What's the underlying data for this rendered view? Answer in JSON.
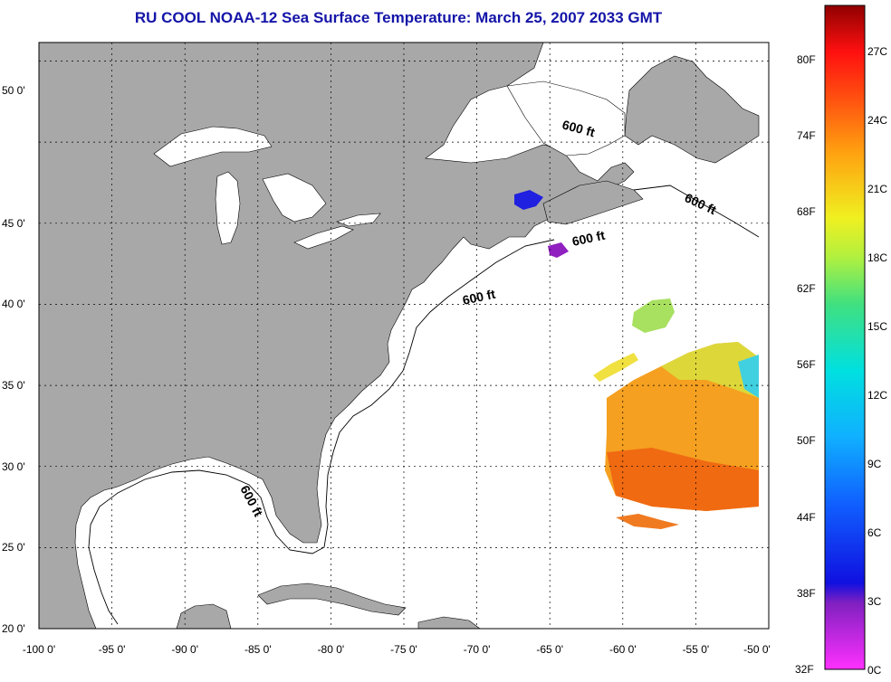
{
  "title": "RU COOL  NOAA-12  Sea Surface Temperature:  March 25, 2007 2033 GMT",
  "colors": {
    "land": "#a8a8a8",
    "water": "#ffffff",
    "title": "#1414a8"
  },
  "map": {
    "lon_range": [
      -100,
      -50
    ],
    "lat_range": [
      20,
      52.5
    ],
    "x_ticks": [
      "-100 0'",
      "-95 0'",
      "-90 0'",
      "-85 0'",
      "-80 0'",
      "-75 0'",
      "-70 0'",
      "-65 0'",
      "-60 0'",
      "-55 0'",
      "-50 0'"
    ],
    "y_ticks": [
      "20 0'",
      "25 0'",
      "30 0'",
      "35 0'",
      "40 0'",
      "45 0'",
      "50 0'"
    ],
    "isobath_label": "600 ft"
  },
  "colorbar": {
    "fahrenheit_labels": [
      "80F",
      "74F",
      "68F",
      "62F",
      "56F",
      "50F",
      "44F",
      "38F",
      "32F"
    ],
    "celsius_labels": [
      "27C",
      "24C",
      "21C",
      "18C",
      "15C",
      "12C",
      "9C",
      "6C",
      "3C",
      "0C"
    ]
  }
}
